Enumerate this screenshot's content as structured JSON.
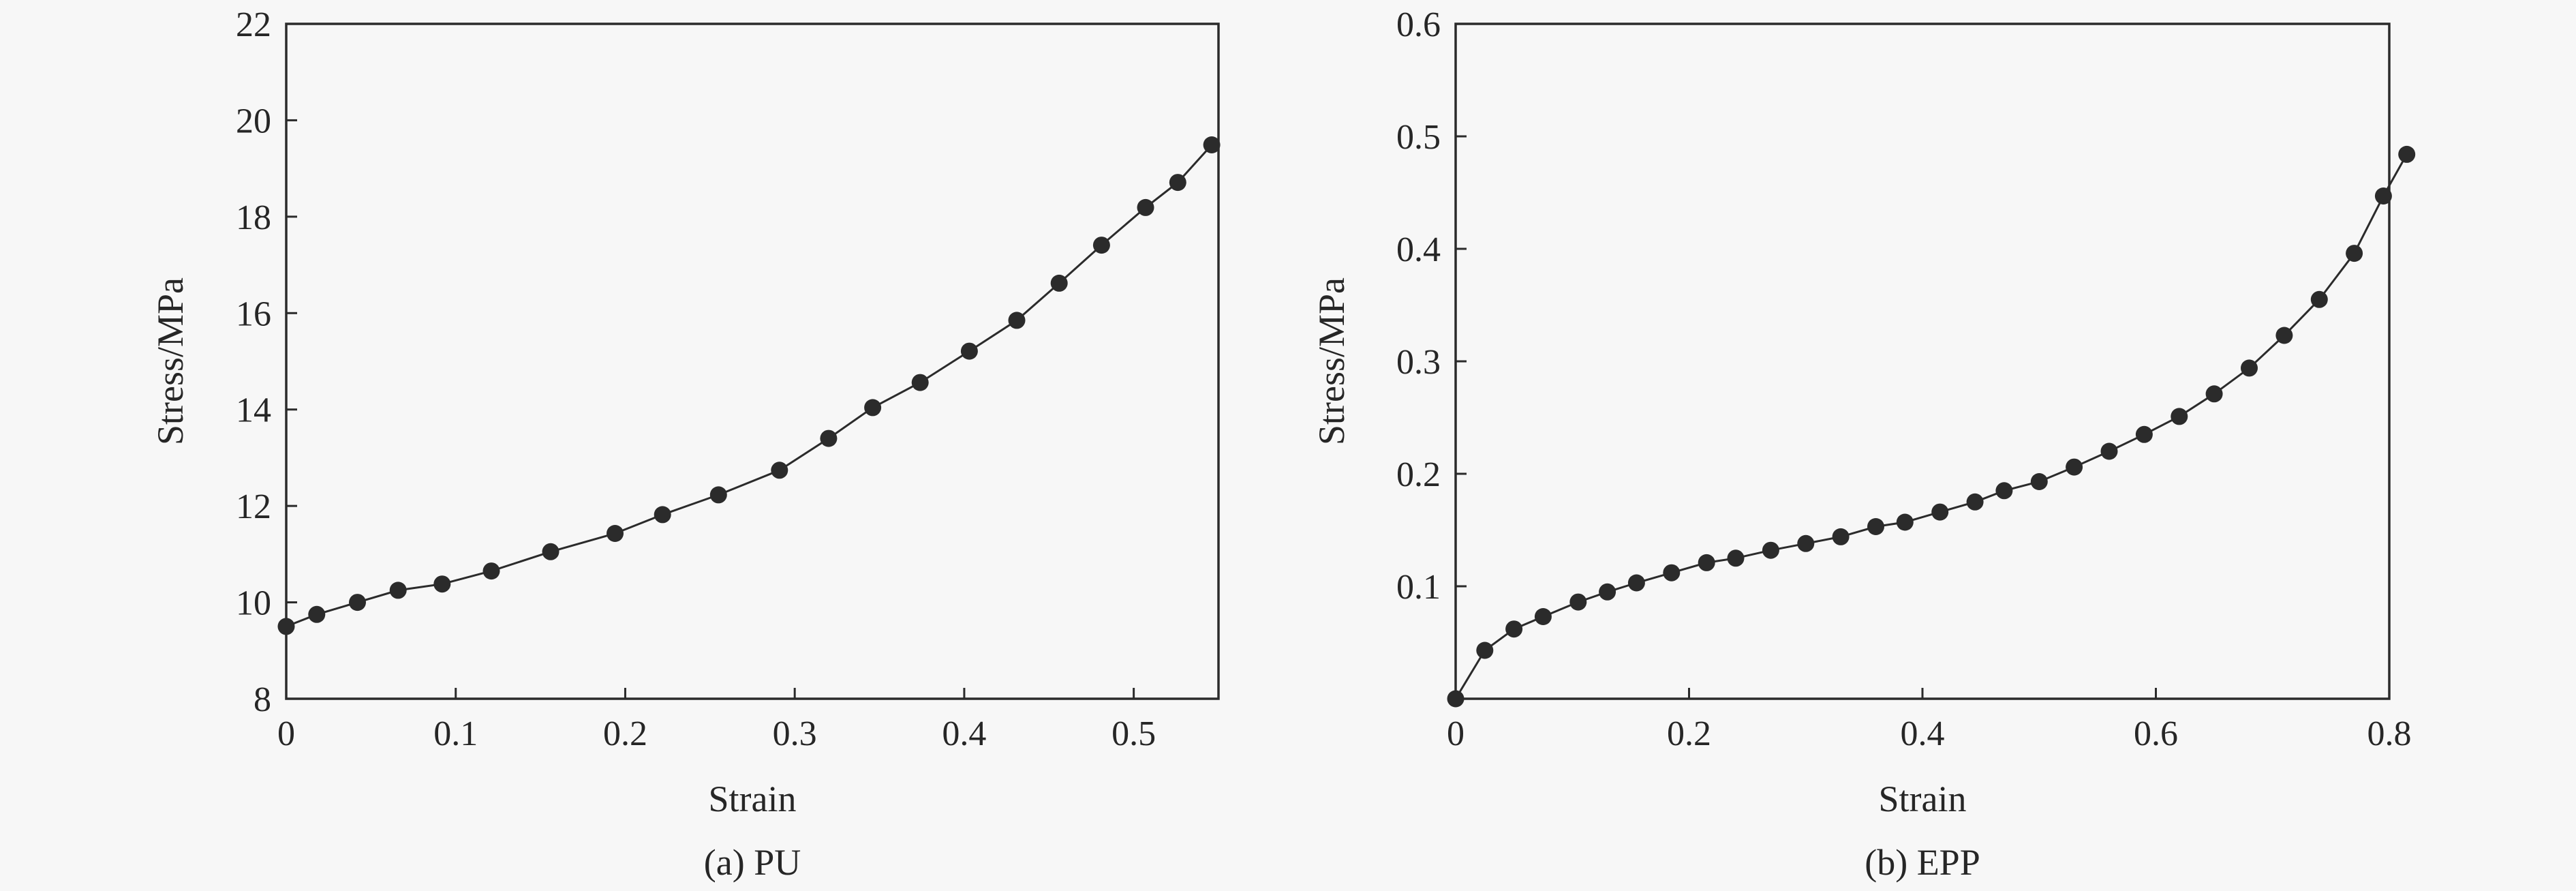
{
  "chart_data": [
    {
      "type": "line",
      "caption": "(a) PU",
      "xlabel": "Strain",
      "ylabel": "Stress/MPa",
      "xlim": [
        0,
        0.55
      ],
      "ylim": [
        8,
        22
      ],
      "xticks": [
        0,
        0.1,
        0.2,
        0.3,
        0.4,
        0.5
      ],
      "xtick_labels": [
        "0",
        "0.1",
        "0.2",
        "0.3",
        "0.4",
        "0.5"
      ],
      "yticks": [
        8,
        10,
        12,
        14,
        16,
        18,
        20,
        22
      ],
      "ytick_labels": [
        "8",
        "10",
        "12",
        "14",
        "16",
        "18",
        "20",
        "22"
      ],
      "grid": false,
      "marker": "filled-circle",
      "color": "#2b2b2b",
      "series": [
        {
          "x": [
            0.0,
            0.018,
            0.042,
            0.066,
            0.092,
            0.121,
            0.156,
            0.194,
            0.222,
            0.255,
            0.291,
            0.32,
            0.346,
            0.374,
            0.403,
            0.431,
            0.456,
            0.481,
            0.507,
            0.526,
            0.546
          ],
          "y": [
            9.5,
            9.75,
            10.0,
            10.25,
            10.38,
            10.65,
            11.05,
            11.43,
            11.82,
            12.23,
            12.74,
            13.4,
            14.04,
            14.56,
            15.21,
            15.85,
            16.62,
            17.41,
            18.19,
            18.71,
            19.49
          ]
        }
      ]
    },
    {
      "type": "line",
      "caption": "(b) EPP",
      "xlabel": "Strain",
      "ylabel": "Stress/MPa",
      "xlim": [
        0,
        0.8
      ],
      "ylim": [
        0,
        0.6
      ],
      "xticks": [
        0,
        0.2,
        0.4,
        0.6,
        0.8
      ],
      "xtick_labels": [
        "0",
        "0.2",
        "0.4",
        "0.6",
        "0.8"
      ],
      "yticks": [
        0.1,
        0.2,
        0.3,
        0.4,
        0.5,
        0.6
      ],
      "ytick_labels": [
        "0.1",
        "0.2",
        "0.3",
        "0.4",
        "0.5",
        "0.6"
      ],
      "grid": false,
      "marker": "filled-circle",
      "color": "#2b2b2b",
      "series": [
        {
          "x": [
            0.0,
            0.025,
            0.05,
            0.075,
            0.105,
            0.13,
            0.155,
            0.185,
            0.215,
            0.24,
            0.27,
            0.3,
            0.33,
            0.36,
            0.385,
            0.415,
            0.445,
            0.47,
            0.5,
            0.53,
            0.56,
            0.59,
            0.62,
            0.65,
            0.68,
            0.71,
            0.74,
            0.77,
            0.795,
            0.815
          ],
          "y": [
            0.0,
            0.043,
            0.062,
            0.073,
            0.086,
            0.095,
            0.103,
            0.112,
            0.121,
            0.125,
            0.132,
            0.138,
            0.144,
            0.153,
            0.157,
            0.166,
            0.175,
            0.185,
            0.193,
            0.206,
            0.22,
            0.235,
            0.251,
            0.271,
            0.294,
            0.323,
            0.355,
            0.396,
            0.447,
            0.484
          ]
        }
      ]
    }
  ]
}
